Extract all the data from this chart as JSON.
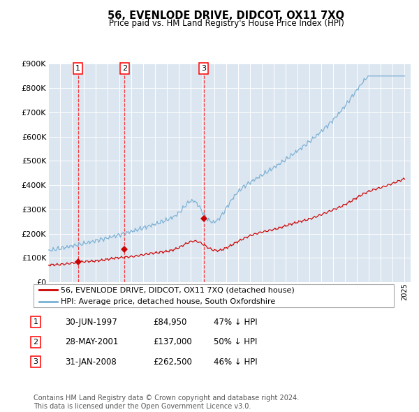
{
  "title": "56, EVENLODE DRIVE, DIDCOT, OX11 7XQ",
  "subtitle": "Price paid vs. HM Land Registry's House Price Index (HPI)",
  "plot_bg_color": "#dce6f0",
  "line_color_hpi": "#7ab0d4",
  "line_color_price": "#cc0000",
  "marker_color": "#cc0000",
  "transactions": [
    {
      "date_num": 1997.5,
      "price": 84950,
      "label": "1"
    },
    {
      "date_num": 2001.42,
      "price": 137000,
      "label": "2"
    },
    {
      "date_num": 2008.08,
      "price": 262500,
      "label": "3"
    }
  ],
  "legend_entries": [
    "56, EVENLODE DRIVE, DIDCOT, OX11 7XQ (detached house)",
    "HPI: Average price, detached house, South Oxfordshire"
  ],
  "table_data": [
    [
      "1",
      "30-JUN-1997",
      "£84,950",
      "47% ↓ HPI"
    ],
    [
      "2",
      "28-MAY-2001",
      "£137,000",
      "50% ↓ HPI"
    ],
    [
      "3",
      "31-JAN-2008",
      "£262,500",
      "46% ↓ HPI"
    ]
  ],
  "footnote": "Contains HM Land Registry data © Crown copyright and database right 2024.\nThis data is licensed under the Open Government Licence v3.0.",
  "ylim": [
    0,
    900000
  ],
  "yticks": [
    0,
    100000,
    200000,
    300000,
    400000,
    500000,
    600000,
    700000,
    800000,
    900000
  ],
  "xstart": 1995.0,
  "xend": 2025.5
}
